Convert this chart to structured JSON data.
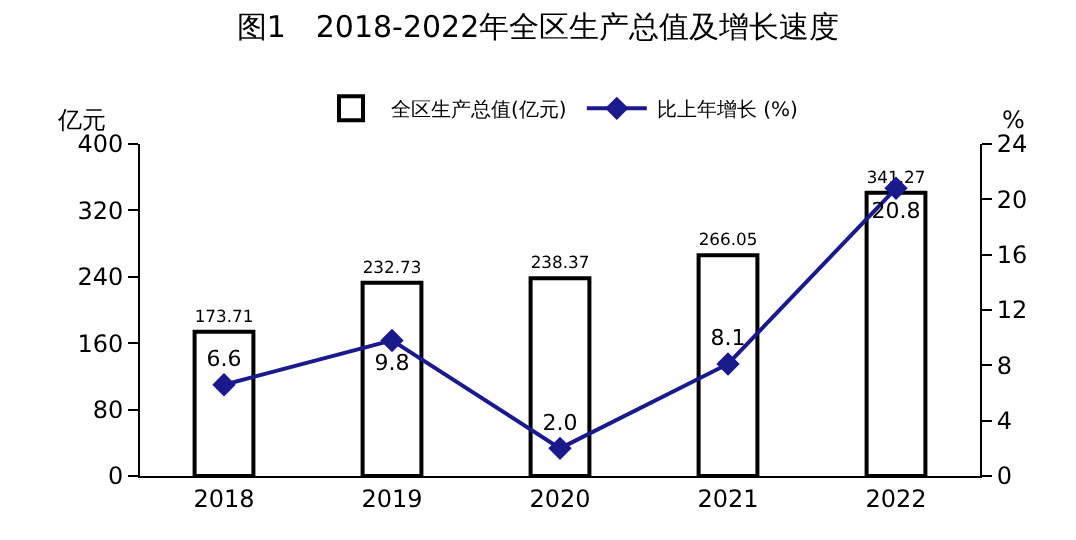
{
  "chart_data": {
    "type": "bar",
    "title": "图1　2018-2022年全区生产总值及增长速度",
    "ylabel": "亿元",
    "y2label": "%",
    "categories": [
      "2018",
      "2019",
      "2020",
      "2021",
      "2022"
    ],
    "series": [
      {
        "name": "全区生产总值(亿元)",
        "color": "#ffffff",
        "values": [
          173.71,
          232.73,
          238.37,
          266.05,
          341.27
        ],
        "value_labels": [
          "173.71",
          "232.73",
          "238.37",
          "266.05",
          "341.27"
        ]
      },
      {
        "name": "比上年增长 (%)",
        "type": "line",
        "axis": "y2",
        "color": "#1a1a8c",
        "marker": "diamond",
        "values": [
          6.6,
          9.8,
          2.0,
          8.1,
          20.8
        ],
        "value_labels": [
          "6.6",
          "9.8",
          "2.0",
          "8.1",
          "20.8"
        ]
      }
    ],
    "ylim": [
      0,
      400
    ],
    "yticks": [
      0,
      80,
      160,
      240,
      320,
      400
    ],
    "y2lim": [
      0,
      24
    ],
    "y2ticks": [
      0,
      4,
      8,
      12,
      16,
      20,
      24
    ],
    "legend": "top"
  }
}
